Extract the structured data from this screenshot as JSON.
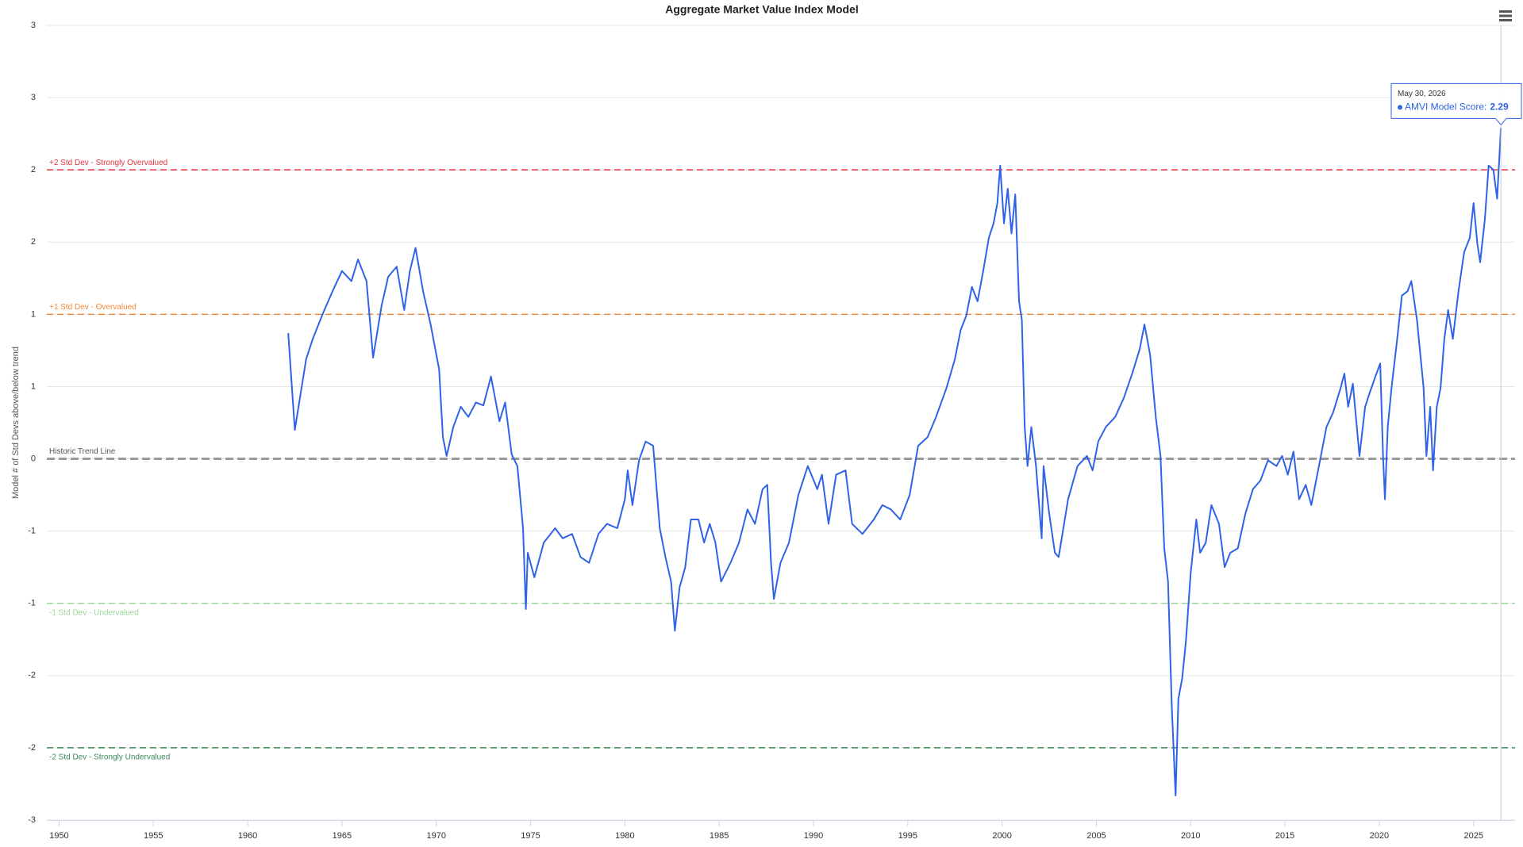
{
  "chart_data": {
    "type": "line",
    "title": "Aggregate Market Value Index Model",
    "y_label": "Model # of Std Devs above/below trend",
    "xlim": [
      1949.35,
      2027.2
    ],
    "xticks": [
      1950,
      1955,
      1960,
      1965,
      1970,
      1975,
      1980,
      1985,
      1990,
      1995,
      2000,
      2005,
      2010,
      2015,
      2020,
      2025
    ],
    "ylim": [
      -2.5,
      3
    ],
    "yticks": [
      3,
      {
        "value": 2.5,
        "label": "3"
      },
      2,
      {
        "value": 1.5,
        "label": "2"
      },
      1,
      {
        "value": 0.5,
        "label": "1"
      },
      0,
      {
        "value": -0.5,
        "label": "-1"
      },
      -1,
      {
        "value": -1.5,
        "label": "-2"
      },
      -2,
      {
        "value": -2.5,
        "label": "-3"
      }
    ],
    "grid": true,
    "reference_lines": [
      {
        "value": 2,
        "label": "+2 Std Dev - Strongly Overvalued",
        "color": "#e3343f"
      },
      {
        "value": 1,
        "label": "+1 Std Dev - Overvalued",
        "color": "#f28a3a"
      },
      {
        "value": 0,
        "label": "Historic Trend Line",
        "color": "#9a9a9a"
      },
      {
        "value": -1,
        "label": "-1 Std Dev - Undervalued",
        "color": "#9ed59a"
      },
      {
        "value": -2,
        "label": "-2 Std Dev - Strongly Undervalued",
        "color": "#3c8a5c"
      }
    ],
    "x": [
      1962.15,
      1962.5,
      1963.1,
      1963.45,
      1964.0,
      1964.5,
      1965.0,
      1965.5,
      1965.85,
      1966.3,
      1966.65,
      1967.1,
      1967.45,
      1967.9,
      1968.3,
      1968.6,
      1968.9,
      1969.3,
      1969.7,
      1970.15,
      1970.35,
      1970.55,
      1970.9,
      1971.3,
      1971.7,
      1972.1,
      1972.5,
      1972.9,
      1973.35,
      1973.65,
      1974.0,
      1974.3,
      1974.6,
      1974.75,
      1974.85,
      1975.2,
      1975.7,
      1976.3,
      1976.7,
      1977.2,
      1977.65,
      1978.1,
      1978.6,
      1979.05,
      1979.6,
      1980.0,
      1980.15,
      1980.4,
      1980.75,
      1981.1,
      1981.5,
      1981.85,
      1982.15,
      1982.45,
      1982.65,
      1982.9,
      1983.2,
      1983.5,
      1983.9,
      1984.2,
      1984.5,
      1984.8,
      1985.1,
      1985.6,
      1986.05,
      1986.5,
      1986.9,
      1987.3,
      1987.55,
      1987.75,
      1987.9,
      1988.25,
      1988.7,
      1989.2,
      1989.7,
      1990.2,
      1990.45,
      1990.8,
      1991.2,
      1991.7,
      1992.05,
      1992.6,
      1993.2,
      1993.65,
      1994.1,
      1994.6,
      1995.1,
      1995.55,
      1996.05,
      1996.5,
      1997.05,
      1997.5,
      1997.8,
      1998.1,
      1998.4,
      1998.7,
      1999.0,
      1999.3,
      1999.55,
      1999.75,
      1999.9,
      2000.1,
      2000.3,
      2000.5,
      2000.7,
      2000.9,
      2001.05,
      2001.2,
      2001.35,
      2001.55,
      2001.8,
      2002.1,
      2002.2,
      2002.5,
      2002.8,
      2003.0,
      2003.5,
      2004.0,
      2004.5,
      2004.8,
      2005.1,
      2005.5,
      2006.0,
      2006.45,
      2006.9,
      2007.3,
      2007.55,
      2007.85,
      2008.15,
      2008.4,
      2008.6,
      2008.8,
      2009.0,
      2009.2,
      2009.35,
      2009.55,
      2009.75,
      2010.0,
      2010.3,
      2010.5,
      2010.8,
      2011.1,
      2011.5,
      2011.8,
      2012.1,
      2012.5,
      2012.9,
      2013.3,
      2013.7,
      2014.1,
      2014.55,
      2014.85,
      2015.15,
      2015.45,
      2015.75,
      2016.1,
      2016.4,
      2016.8,
      2017.2,
      2017.55,
      2017.95,
      2018.15,
      2018.35,
      2018.6,
      2018.95,
      2019.25,
      2019.5,
      2019.85,
      2020.05,
      2020.2,
      2020.3,
      2020.45,
      2020.65,
      2020.95,
      2021.2,
      2021.5,
      2021.7,
      2022.0,
      2022.35,
      2022.5,
      2022.7,
      2022.85,
      2023.05,
      2023.25,
      2023.45,
      2023.65,
      2023.9,
      2024.2,
      2024.5,
      2024.8,
      2025.0,
      2025.2,
      2025.35,
      2025.6,
      2025.8,
      2026.05,
      2026.25,
      2026.45
    ],
    "series": [
      {
        "color": "#2f62e6",
        "values": [
          0.87,
          0.2,
          0.69,
          0.83,
          1.01,
          1.16,
          1.3,
          1.23,
          1.38,
          1.23,
          0.7,
          1.06,
          1.26,
          1.33,
          1.03,
          1.3,
          1.46,
          1.16,
          0.93,
          0.62,
          0.15,
          0.02,
          0.22,
          0.36,
          0.29,
          0.39,
          0.37,
          0.57,
          0.26,
          0.39,
          0.03,
          -0.05,
          -0.48,
          -1.04,
          -0.65,
          -0.82,
          -0.58,
          -0.48,
          -0.55,
          -0.52,
          -0.68,
          -0.72,
          -0.52,
          -0.45,
          -0.48,
          -0.28,
          -0.08,
          -0.32,
          -0.01,
          0.12,
          0.09,
          -0.48,
          -0.68,
          -0.85,
          -1.19,
          -0.89,
          -0.75,
          -0.42,
          -0.42,
          -0.58,
          -0.45,
          -0.58,
          -0.85,
          -0.72,
          -0.58,
          -0.35,
          -0.45,
          -0.21,
          -0.18,
          -0.72,
          -0.97,
          -0.72,
          -0.58,
          -0.25,
          -0.05,
          -0.21,
          -0.11,
          -0.45,
          -0.11,
          -0.08,
          -0.45,
          -0.52,
          -0.42,
          -0.32,
          -0.35,
          -0.42,
          -0.25,
          0.09,
          0.15,
          0.29,
          0.49,
          0.69,
          0.89,
          0.99,
          1.19,
          1.09,
          1.3,
          1.53,
          1.63,
          1.77,
          2.03,
          1.63,
          1.87,
          1.56,
          1.83,
          1.09,
          0.96,
          0.22,
          -0.05,
          0.22,
          -0.05,
          -0.55,
          -0.05,
          -0.38,
          -0.65,
          -0.68,
          -0.28,
          -0.05,
          0.02,
          -0.08,
          0.12,
          0.22,
          0.29,
          0.42,
          0.59,
          0.76,
          0.93,
          0.72,
          0.29,
          0.02,
          -0.62,
          -0.85,
          -1.72,
          -2.33,
          -1.66,
          -1.52,
          -1.26,
          -0.79,
          -0.42,
          -0.65,
          -0.58,
          -0.32,
          -0.45,
          -0.75,
          -0.65,
          -0.62,
          -0.38,
          -0.21,
          -0.15,
          -0.01,
          -0.05,
          0.02,
          -0.11,
          0.05,
          -0.28,
          -0.18,
          -0.32,
          -0.05,
          0.22,
          0.32,
          0.49,
          0.59,
          0.36,
          0.52,
          0.02,
          0.36,
          0.46,
          0.59,
          0.66,
          0.02,
          -0.28,
          0.22,
          0.49,
          0.83,
          1.13,
          1.16,
          1.23,
          0.96,
          0.49,
          0.02,
          0.36,
          -0.08,
          0.36,
          0.49,
          0.83,
          1.03,
          0.83,
          1.16,
          1.43,
          1.53,
          1.77,
          1.49,
          1.36,
          1.66,
          2.03,
          2.0,
          1.8,
          2.29
        ]
      }
    ],
    "tooltip": {
      "date": "May 30, 2026",
      "series_label": "AMVI Model Score:",
      "value": 2.29
    }
  }
}
